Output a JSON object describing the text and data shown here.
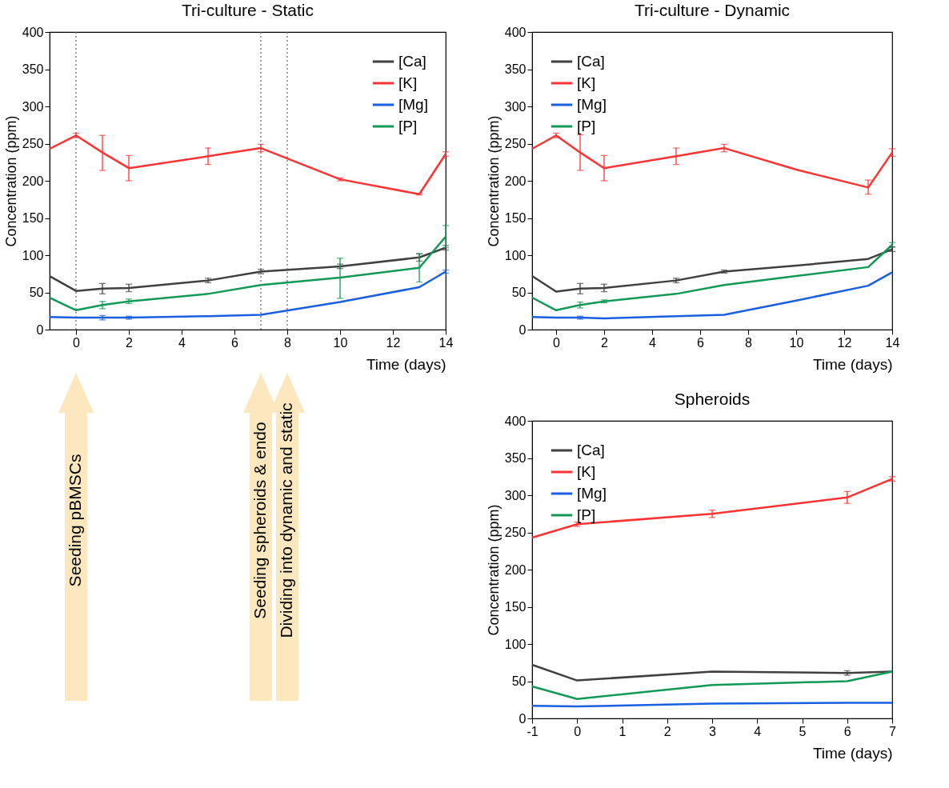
{
  "chart_data": [
    {
      "type": "line",
      "title": "Tri-culture - Static",
      "xlabel": "Time (days)",
      "ylabel": "Concentration (ppm)",
      "x": [
        -1,
        0,
        1,
        2,
        5,
        7,
        10,
        13,
        14
      ],
      "xlim": [
        -1,
        14
      ],
      "xticks": [
        0,
        2,
        4,
        6,
        8,
        10,
        12,
        14
      ],
      "ylim": [
        0,
        400
      ],
      "yticks": [
        0,
        50,
        100,
        150,
        200,
        250,
        300,
        350,
        400
      ],
      "legend": "top right",
      "series": [
        {
          "name": "[Ca]",
          "color": "#404040",
          "values": [
            72,
            52,
            55,
            56,
            66,
            78,
            85,
            97,
            110
          ],
          "errors": [
            null,
            null,
            7,
            5,
            3,
            3,
            3,
            5,
            3
          ]
        },
        {
          "name": "[K]",
          "color": "#ff3333",
          "values": [
            243,
            261,
            238,
            217,
            233,
            244,
            202,
            182,
            236
          ],
          "errors": [
            null,
            3,
            [
              214,
              261
            ],
            [
              200,
              234
            ],
            [
              222,
              244
            ],
            [
              239,
              249
            ],
            2,
            1,
            [
              233,
              239
            ]
          ]
        },
        {
          "name": "[Mg]",
          "color": "#1a5fe0",
          "values": [
            17,
            16,
            16,
            16,
            18,
            20,
            37,
            57,
            78
          ],
          "errors": [
            null,
            null,
            3,
            2,
            null,
            null,
            null,
            null,
            2
          ]
        },
        {
          "name": "[P]",
          "color": "#119955",
          "values": [
            43,
            26,
            33,
            38,
            48,
            60,
            70,
            83,
            125
          ],
          "errors": [
            null,
            null,
            5,
            3,
            null,
            null,
            [
              42,
              96
            ],
            [
              64,
              102
            ],
            [
              110,
              140
            ]
          ]
        }
      ],
      "ref_lines": [
        {
          "axis": "x",
          "value": 0,
          "line_style": "dotted",
          "color": "#666666"
        },
        {
          "axis": "x",
          "value": 7,
          "line_style": "dotted",
          "color": "#666666"
        },
        {
          "axis": "x",
          "value": 8,
          "line_style": "dotted",
          "color": "#666666"
        }
      ],
      "annotations": [
        "Seeding pBMSCs",
        "Seeding spheroids & endo",
        "Dividing into dynamic and static"
      ]
    },
    {
      "type": "line",
      "title": "Tri-culture - Dynamic",
      "xlabel": "Time (days)",
      "ylabel": "Concentration (ppm)",
      "x": [
        -1,
        0,
        1,
        2,
        5,
        7,
        10,
        13,
        14
      ],
      "xlim": [
        -1,
        14
      ],
      "xticks": [
        0,
        2,
        4,
        6,
        8,
        10,
        12,
        14
      ],
      "ylim": [
        0,
        400
      ],
      "yticks": [
        0,
        50,
        100,
        150,
        200,
        250,
        300,
        350,
        400
      ],
      "legend": "top left",
      "series": [
        {
          "name": "[Ca]",
          "color": "#404040",
          "values": [
            72,
            51,
            55,
            56,
            66,
            78,
            86,
            95,
            108
          ],
          "errors": [
            null,
            null,
            [
              48,
              62
            ],
            [
              51,
              61
            ],
            3,
            2,
            null,
            null,
            3
          ]
        },
        {
          "name": "[K]",
          "color": "#ff3333",
          "values": [
            243,
            261,
            238,
            217,
            233,
            244,
            215,
            191,
            238
          ],
          "errors": [
            null,
            3,
            [
              214,
              262
            ],
            [
              200,
              234
            ],
            [
              222,
              244
            ],
            [
              239,
              249
            ],
            null,
            [
              182,
              201
            ],
            [
              233,
              243
            ]
          ]
        },
        {
          "name": "[Mg]",
          "color": "#1a5fe0",
          "values": [
            17,
            16,
            16,
            15,
            18,
            20,
            39,
            59,
            77
          ],
          "errors": [
            null,
            null,
            2,
            null,
            null,
            null,
            null,
            null,
            null
          ]
        },
        {
          "name": "[P]",
          "color": "#119955",
          "values": [
            43,
            26,
            33,
            38,
            48,
            60,
            72,
            84,
            114
          ],
          "errors": [
            null,
            null,
            4,
            2,
            null,
            null,
            null,
            null,
            3
          ]
        }
      ]
    },
    {
      "type": "line",
      "title": "Spheroids",
      "xlabel": "Time (days)",
      "ylabel": "Concentration (ppm)",
      "x": [
        -1,
        0,
        3,
        6,
        7
      ],
      "xlim": [
        -1,
        7
      ],
      "xticks": [
        -1,
        0,
        1,
        2,
        3,
        4,
        5,
        6,
        7
      ],
      "ylim": [
        0,
        400
      ],
      "yticks": [
        0,
        50,
        100,
        150,
        200,
        250,
        300,
        350,
        400
      ],
      "legend": "top left",
      "series": [
        {
          "name": "[Ca]",
          "color": "#404040",
          "values": [
            72,
            51,
            63,
            61,
            63
          ],
          "errors": [
            null,
            null,
            null,
            3,
            null
          ]
        },
        {
          "name": "[K]",
          "color": "#ff3333",
          "values": [
            243,
            261,
            275,
            297,
            322
          ],
          "errors": [
            null,
            3,
            5,
            8,
            3
          ]
        },
        {
          "name": "[Mg]",
          "color": "#1a5fe0",
          "values": [
            17,
            16,
            20,
            21,
            21
          ]
        },
        {
          "name": "[P]",
          "color": "#119955",
          "values": [
            43,
            26,
            45,
            50,
            63
          ]
        }
      ]
    }
  ]
}
